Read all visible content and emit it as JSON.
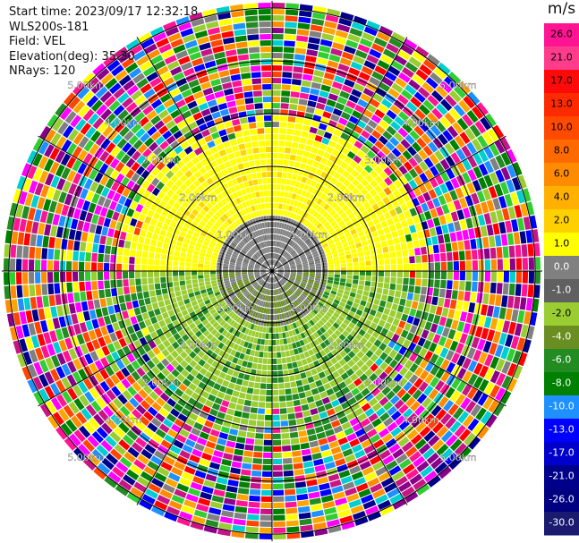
{
  "header": {
    "start_time": "Start time: 2023/09/17 12:32:18",
    "instrument": "WLS200s-181",
    "field": "Field: VEL",
    "elevation": "Elevation(deg): 35.30",
    "nrays": "NRays: 120"
  },
  "legend": {
    "units": "m/s",
    "ticks": [
      "26.0",
      "21.0",
      "17.0",
      "13.0",
      "10.0",
      "8.0",
      "6.0",
      "4.0",
      "2.0",
      "1.0",
      "0.0",
      "-1.0",
      "-2.0",
      "-4.0",
      "-6.0",
      "-8.0",
      "-10.0",
      "-13.0",
      "-17.0",
      "-21.0",
      "-26.0",
      "-30.0"
    ],
    "colors": [
      "#ff1493",
      "#ff3c8c",
      "#ff0a0a",
      "#ff2a00",
      "#ff4a00",
      "#ff6a00",
      "#ff8c00",
      "#ffb000",
      "#ffd000",
      "#ffff00",
      "#808080",
      "#606060",
      "#9acd32",
      "#6b8e23",
      "#228b22",
      "#008000",
      "#1e90ff",
      "#0000ff",
      "#0000cd",
      "#00008b",
      "#000080",
      "#1a1a6e"
    ]
  },
  "range_labels": [
    "1.00km",
    "2.00km",
    "3.00km",
    "4.00km",
    "5.00km"
  ],
  "palette": {
    "yellow": "#ffff00",
    "yellow_dark": "#ffd700",
    "gray": "#808080",
    "gray_dark": "#6e6e6e",
    "olive": "#9acd32",
    "olive_dark": "#6b8e23",
    "green": "#228b22",
    "noise": [
      "#ff1493",
      "#ff00ff",
      "#ff0000",
      "#ff4500",
      "#ff8c00",
      "#ffff00",
      "#808080",
      "#9acd32",
      "#228b22",
      "#008000",
      "#1e90ff",
      "#0000ff",
      "#00008b",
      "#8b008b",
      "#c71585",
      "#ffa500",
      "#32cd32",
      "#00ced1"
    ]
  }
}
